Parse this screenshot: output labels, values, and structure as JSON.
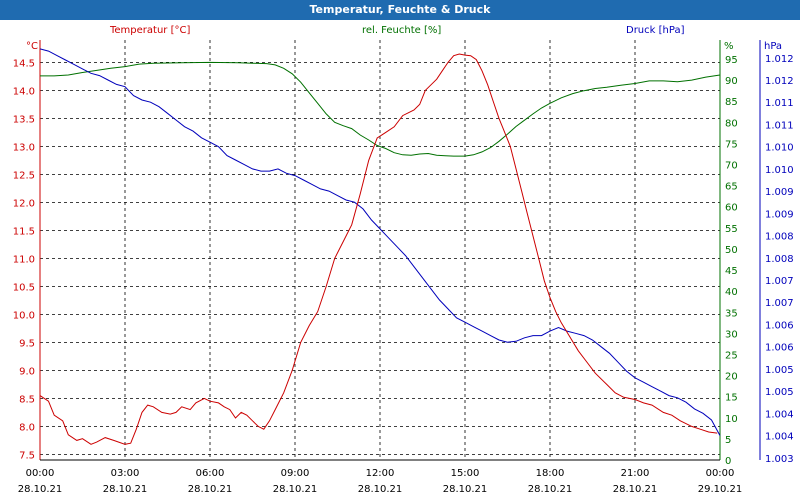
{
  "chart_data": {
    "type": "line",
    "title": "Temperatur, Feuchte & Druck",
    "series_labels": {
      "temperature": "Temperatur [°C]",
      "humidity": "rel. Feuchte [%]",
      "pressure": "Druck [hPa]"
    },
    "axis_units": {
      "left": "°C",
      "right1": "%",
      "right2": "hPa"
    },
    "colors": {
      "temperature": "#cc0000",
      "humidity": "#007000",
      "pressure": "#0000bb",
      "title_bg": "#1f6bb0"
    },
    "grid": true,
    "left_axis": {
      "min": 7.4,
      "max": 14.9,
      "ticks": [
        "7.5",
        "8.0",
        "8.5",
        "9.0",
        "9.5",
        "10.0",
        "10.5",
        "11.0",
        "11.5",
        "12.0",
        "12.5",
        "13.0",
        "13.5",
        "14.0",
        "14.5"
      ]
    },
    "humidity_axis": {
      "min": 0,
      "max": 99.5,
      "ticks": [
        "0",
        "5",
        "10",
        "15",
        "20",
        "25",
        "30",
        "35",
        "40",
        "45",
        "50",
        "55",
        "60",
        "65",
        "70",
        "75",
        "80",
        "85",
        "90",
        "95"
      ],
      "top_label": "%"
    },
    "pressure_axis": {
      "min": 1002.95,
      "max": 1012.4,
      "tick_values": [
        1003,
        1003.5,
        1004,
        1004.5,
        1005,
        1005.5,
        1006,
        1006.5,
        1007,
        1007.5,
        1008,
        1008.5,
        1009,
        1009.5,
        1010,
        1010.5,
        1011,
        1011.5,
        1012
      ],
      "tick_labels": [
        "1.003",
        "1.004",
        "1.004",
        "1.005",
        "1.005",
        "1.006",
        "1.006",
        "1.007",
        "1.007",
        "1.008",
        "1.008",
        "1.009",
        "1.009",
        "1.010",
        "1.010",
        "1.011",
        "1.011",
        "1.012",
        "1.012"
      ]
    },
    "x_ticks": [
      {
        "time": "00:00",
        "date": "28.10.21"
      },
      {
        "time": "03:00",
        "date": "28.10.21"
      },
      {
        "time": "06:00",
        "date": "28.10.21"
      },
      {
        "time": "09:00",
        "date": "28.10.21"
      },
      {
        "time": "12:00",
        "date": "28.10.21"
      },
      {
        "time": "15:00",
        "date": "28.10.21"
      },
      {
        "time": "18:00",
        "date": "28.10.21"
      },
      {
        "time": "21:00",
        "date": "28.10.21"
      },
      {
        "time": "00:00",
        "date": "29.10.21"
      }
    ],
    "x_unit": "hours since 28.10.21 00:00",
    "temperature": [
      [
        0,
        8.55
      ],
      [
        0.3,
        8.45
      ],
      [
        0.5,
        8.2
      ],
      [
        0.8,
        8.1
      ],
      [
        1,
        7.85
      ],
      [
        1.3,
        7.75
      ],
      [
        1.5,
        7.78
      ],
      [
        1.8,
        7.68
      ],
      [
        2,
        7.72
      ],
      [
        2.3,
        7.8
      ],
      [
        2.6,
        7.75
      ],
      [
        3,
        7.68
      ],
      [
        3.2,
        7.7
      ],
      [
        3.4,
        7.95
      ],
      [
        3.6,
        8.25
      ],
      [
        3.8,
        8.38
      ],
      [
        4,
        8.35
      ],
      [
        4.3,
        8.25
      ],
      [
        4.6,
        8.22
      ],
      [
        4.8,
        8.25
      ],
      [
        5,
        8.35
      ],
      [
        5.3,
        8.3
      ],
      [
        5.5,
        8.42
      ],
      [
        5.8,
        8.5
      ],
      [
        6,
        8.45
      ],
      [
        6.3,
        8.42
      ],
      [
        6.5,
        8.35
      ],
      [
        6.7,
        8.3
      ],
      [
        6.9,
        8.15
      ],
      [
        7.1,
        8.25
      ],
      [
        7.3,
        8.2
      ],
      [
        7.5,
        8.1
      ],
      [
        7.7,
        8.0
      ],
      [
        7.9,
        7.95
      ],
      [
        8.1,
        8.1
      ],
      [
        8.3,
        8.3
      ],
      [
        8.6,
        8.6
      ],
      [
        8.9,
        9.0
      ],
      [
        9.2,
        9.5
      ],
      [
        9.5,
        9.8
      ],
      [
        9.8,
        10.05
      ],
      [
        10.1,
        10.5
      ],
      [
        10.4,
        11.0
      ],
      [
        10.7,
        11.3
      ],
      [
        11.0,
        11.6
      ],
      [
        11.3,
        12.15
      ],
      [
        11.6,
        12.75
      ],
      [
        11.9,
        13.15
      ],
      [
        12.2,
        13.25
      ],
      [
        12.5,
        13.35
      ],
      [
        12.8,
        13.55
      ],
      [
        13.0,
        13.6
      ],
      [
        13.2,
        13.65
      ],
      [
        13.4,
        13.75
      ],
      [
        13.6,
        14.0
      ],
      [
        13.8,
        14.1
      ],
      [
        14.0,
        14.2
      ],
      [
        14.2,
        14.35
      ],
      [
        14.4,
        14.5
      ],
      [
        14.6,
        14.62
      ],
      [
        14.8,
        14.65
      ],
      [
        15.0,
        14.63
      ],
      [
        15.2,
        14.62
      ],
      [
        15.4,
        14.55
      ],
      [
        15.6,
        14.35
      ],
      [
        15.8,
        14.1
      ],
      [
        16.0,
        13.8
      ],
      [
        16.2,
        13.5
      ],
      [
        16.4,
        13.25
      ],
      [
        16.6,
        13.0
      ],
      [
        16.8,
        12.6
      ],
      [
        17.0,
        12.2
      ],
      [
        17.2,
        11.8
      ],
      [
        17.4,
        11.4
      ],
      [
        17.6,
        11.0
      ],
      [
        17.8,
        10.6
      ],
      [
        18.0,
        10.3
      ],
      [
        18.2,
        10.05
      ],
      [
        18.4,
        9.85
      ],
      [
        18.7,
        9.6
      ],
      [
        19.0,
        9.35
      ],
      [
        19.3,
        9.15
      ],
      [
        19.6,
        8.95
      ],
      [
        20.0,
        8.75
      ],
      [
        20.3,
        8.6
      ],
      [
        20.6,
        8.52
      ],
      [
        21.0,
        8.48
      ],
      [
        21.3,
        8.42
      ],
      [
        21.6,
        8.38
      ],
      [
        22.0,
        8.25
      ],
      [
        22.3,
        8.2
      ],
      [
        22.6,
        8.1
      ],
      [
        23.0,
        8.0
      ],
      [
        23.3,
        7.95
      ],
      [
        23.6,
        7.9
      ],
      [
        23.9,
        7.88
      ]
    ],
    "humidity": [
      [
        0,
        91
      ],
      [
        0.5,
        91
      ],
      [
        1,
        91.2
      ],
      [
        1.5,
        91.8
      ],
      [
        2,
        92.3
      ],
      [
        2.5,
        92.8
      ],
      [
        3,
        93.2
      ],
      [
        3.5,
        93.8
      ],
      [
        4,
        94
      ],
      [
        5,
        94.1
      ],
      [
        6,
        94.2
      ],
      [
        7,
        94.1
      ],
      [
        7.5,
        94.0
      ],
      [
        8,
        93.9
      ],
      [
        8.3,
        93.6
      ],
      [
        8.6,
        92.8
      ],
      [
        8.9,
        91.5
      ],
      [
        9.2,
        89.5
      ],
      [
        9.5,
        87
      ],
      [
        9.8,
        84.5
      ],
      [
        10.1,
        82
      ],
      [
        10.4,
        80
      ],
      [
        10.7,
        79.2
      ],
      [
        11.0,
        78.5
      ],
      [
        11.3,
        77
      ],
      [
        11.6,
        75.8
      ],
      [
        11.9,
        74.5
      ],
      [
        12.2,
        73.8
      ],
      [
        12.5,
        72.8
      ],
      [
        12.8,
        72.3
      ],
      [
        13.1,
        72.2
      ],
      [
        13.4,
        72.5
      ],
      [
        13.7,
        72.6
      ],
      [
        14.0,
        72.2
      ],
      [
        14.3,
        72.1
      ],
      [
        14.6,
        72.0
      ],
      [
        15.0,
        72.0
      ],
      [
        15.3,
        72.3
      ],
      [
        15.6,
        73.0
      ],
      [
        15.9,
        74.0
      ],
      [
        16.2,
        75.5
      ],
      [
        16.5,
        77.2
      ],
      [
        16.8,
        79
      ],
      [
        17.1,
        80.5
      ],
      [
        17.4,
        82
      ],
      [
        17.7,
        83.4
      ],
      [
        18.0,
        84.5
      ],
      [
        18.4,
        85.8
      ],
      [
        18.8,
        86.8
      ],
      [
        19.2,
        87.5
      ],
      [
        19.6,
        88.0
      ],
      [
        20.0,
        88.3
      ],
      [
        20.5,
        88.8
      ],
      [
        21.0,
        89.2
      ],
      [
        21.5,
        89.8
      ],
      [
        22.0,
        89.8
      ],
      [
        22.5,
        89.6
      ],
      [
        23.0,
        90.0
      ],
      [
        23.5,
        90.7
      ],
      [
        24,
        91.2
      ]
    ],
    "pressure": [
      [
        0,
        1012.2
      ],
      [
        0.3,
        1012.15
      ],
      [
        0.6,
        1012.05
      ],
      [
        0.9,
        1011.95
      ],
      [
        1.2,
        1011.85
      ],
      [
        1.5,
        1011.75
      ],
      [
        1.8,
        1011.65
      ],
      [
        2.1,
        1011.6
      ],
      [
        2.4,
        1011.5
      ],
      [
        2.7,
        1011.4
      ],
      [
        3.0,
        1011.35
      ],
      [
        3.3,
        1011.15
      ],
      [
        3.6,
        1011.05
      ],
      [
        3.9,
        1011.0
      ],
      [
        4.2,
        1010.9
      ],
      [
        4.5,
        1010.75
      ],
      [
        4.8,
        1010.6
      ],
      [
        5.1,
        1010.45
      ],
      [
        5.4,
        1010.35
      ],
      [
        5.7,
        1010.2
      ],
      [
        6.0,
        1010.1
      ],
      [
        6.3,
        1010.0
      ],
      [
        6.6,
        1009.8
      ],
      [
        6.9,
        1009.7
      ],
      [
        7.2,
        1009.6
      ],
      [
        7.5,
        1009.5
      ],
      [
        7.8,
        1009.45
      ],
      [
        8.1,
        1009.45
      ],
      [
        8.4,
        1009.5
      ],
      [
        8.7,
        1009.4
      ],
      [
        9.0,
        1009.35
      ],
      [
        9.3,
        1009.25
      ],
      [
        9.6,
        1009.15
      ],
      [
        9.9,
        1009.05
      ],
      [
        10.2,
        1009.0
      ],
      [
        10.5,
        1008.9
      ],
      [
        10.8,
        1008.8
      ],
      [
        11.1,
        1008.75
      ],
      [
        11.4,
        1008.6
      ],
      [
        11.7,
        1008.35
      ],
      [
        12.0,
        1008.15
      ],
      [
        12.3,
        1007.95
      ],
      [
        12.6,
        1007.75
      ],
      [
        12.9,
        1007.55
      ],
      [
        13.2,
        1007.3
      ],
      [
        13.5,
        1007.05
      ],
      [
        13.8,
        1006.8
      ],
      [
        14.1,
        1006.55
      ],
      [
        14.4,
        1006.35
      ],
      [
        14.7,
        1006.15
      ],
      [
        15.0,
        1006.05
      ],
      [
        15.3,
        1005.95
      ],
      [
        15.6,
        1005.85
      ],
      [
        15.9,
        1005.75
      ],
      [
        16.2,
        1005.65
      ],
      [
        16.5,
        1005.6
      ],
      [
        16.8,
        1005.62
      ],
      [
        17.1,
        1005.7
      ],
      [
        17.4,
        1005.75
      ],
      [
        17.7,
        1005.75
      ],
      [
        18.0,
        1005.85
      ],
      [
        18.3,
        1005.93
      ],
      [
        18.6,
        1005.85
      ],
      [
        18.9,
        1005.8
      ],
      [
        19.2,
        1005.75
      ],
      [
        19.5,
        1005.65
      ],
      [
        19.8,
        1005.5
      ],
      [
        20.1,
        1005.35
      ],
      [
        20.4,
        1005.15
      ],
      [
        20.7,
        1004.95
      ],
      [
        21.0,
        1004.8
      ],
      [
        21.3,
        1004.7
      ],
      [
        21.6,
        1004.6
      ],
      [
        21.9,
        1004.5
      ],
      [
        22.2,
        1004.4
      ],
      [
        22.5,
        1004.35
      ],
      [
        22.8,
        1004.25
      ],
      [
        23.1,
        1004.1
      ],
      [
        23.4,
        1004.0
      ],
      [
        23.7,
        1003.85
      ],
      [
        24.0,
        1003.5
      ]
    ]
  }
}
